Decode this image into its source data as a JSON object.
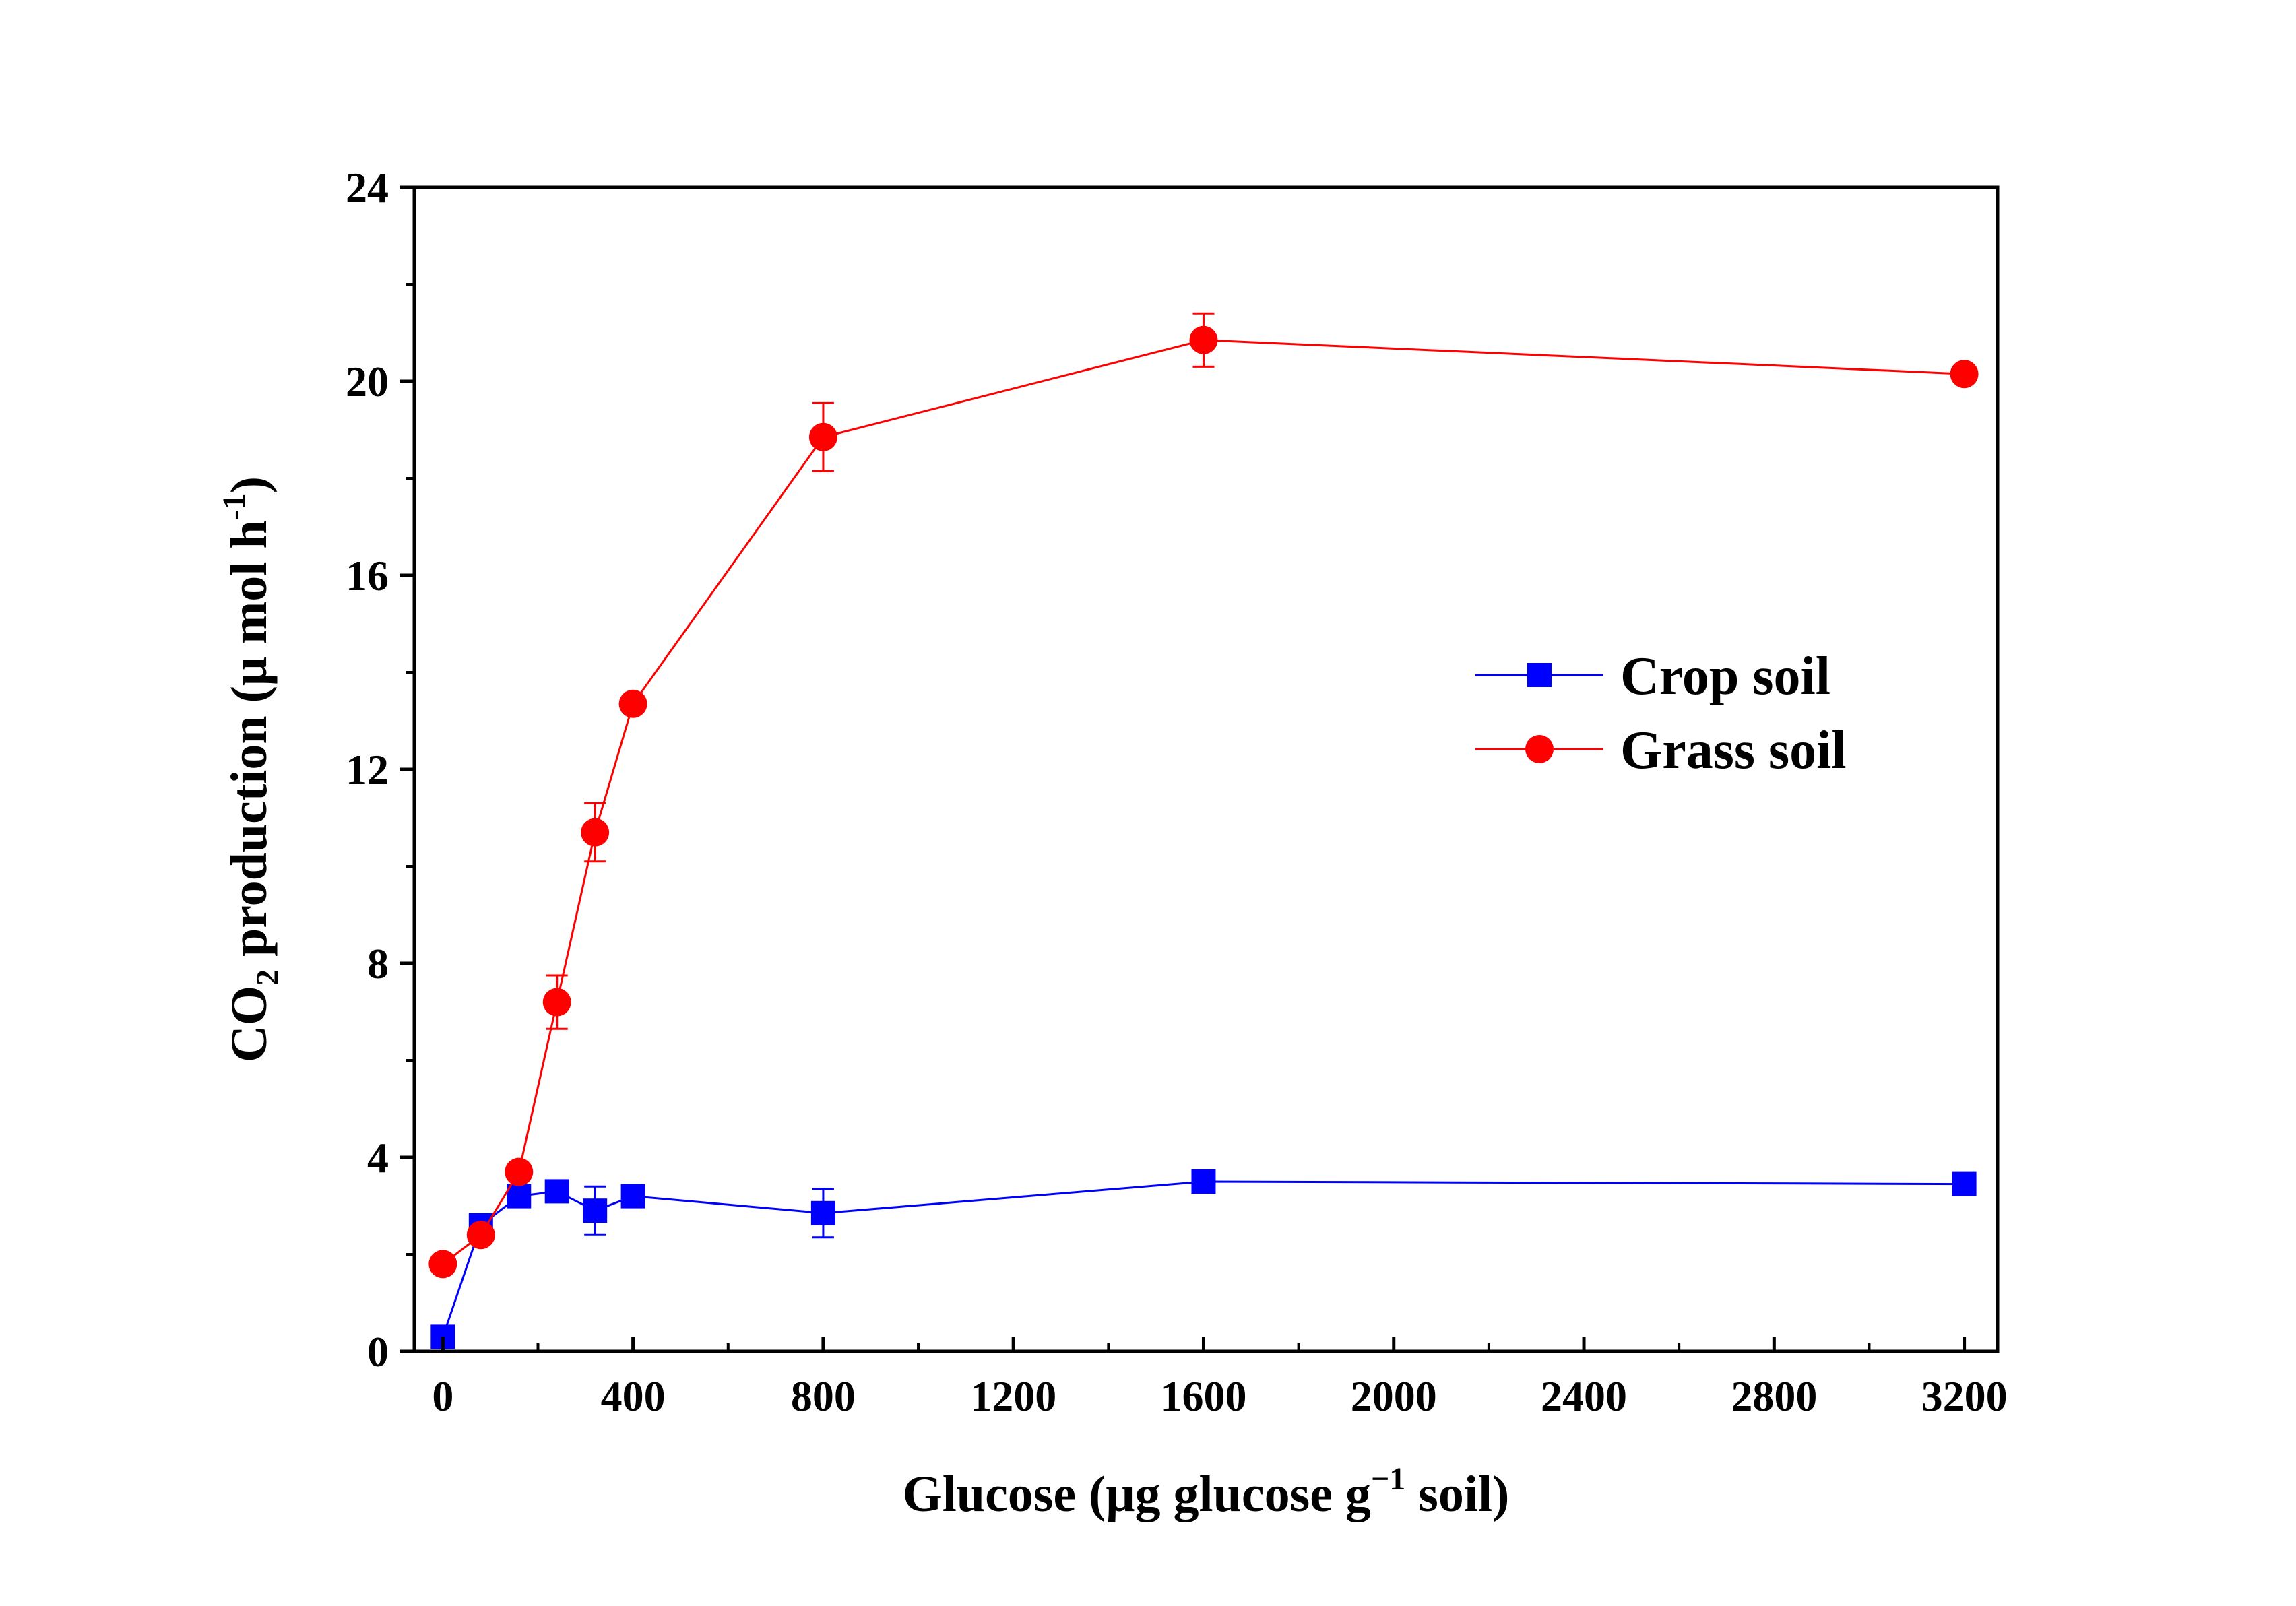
{
  "chart_data": {
    "type": "line",
    "title": "",
    "xlabel": {
      "prefix": "Glucose (μg glucose g",
      "superscript": "−1",
      "suffix": " soil)"
    },
    "ylabel": {
      "prefix": "CO",
      "subscript": "2",
      "middle": " production (μ mol h",
      "superscript": "-1",
      "suffix": ")"
    },
    "xlim": [
      -60,
      3270
    ],
    "ylim": [
      0,
      24
    ],
    "x_ticks": [
      0,
      400,
      800,
      1200,
      1600,
      2000,
      2400,
      2800,
      3200
    ],
    "x_tick_labels": [
      "0",
      "400",
      "800",
      "1200",
      "1600",
      "2000",
      "2400",
      "2800",
      "3200"
    ],
    "y_ticks": [
      0,
      4,
      8,
      12,
      16,
      20,
      24
    ],
    "y_tick_labels": [
      "0",
      "4",
      "8",
      "12",
      "16",
      "20",
      "24"
    ],
    "legend_position": "right-middle",
    "series": [
      {
        "name": "Crop soil",
        "color": "#0000ff",
        "marker": "square",
        "x": [
          0,
          80,
          160,
          240,
          320,
          400,
          800,
          1600,
          3200
        ],
        "y": [
          0.3,
          2.6,
          3.2,
          3.3,
          2.9,
          3.2,
          2.85,
          3.5,
          3.45
        ],
        "err": [
          0,
          0,
          0,
          0,
          0.5,
          0,
          0.5,
          0,
          0
        ]
      },
      {
        "name": "Grass soil",
        "color": "#ff0000",
        "marker": "circle",
        "x": [
          0,
          80,
          160,
          240,
          320,
          400,
          800,
          1600,
          3200
        ],
        "y": [
          1.8,
          2.4,
          3.7,
          7.2,
          10.7,
          13.35,
          18.85,
          20.85,
          20.15
        ],
        "err": [
          0,
          0,
          0,
          0.55,
          0.6,
          0,
          0.7,
          0.55,
          0
        ]
      }
    ]
  }
}
